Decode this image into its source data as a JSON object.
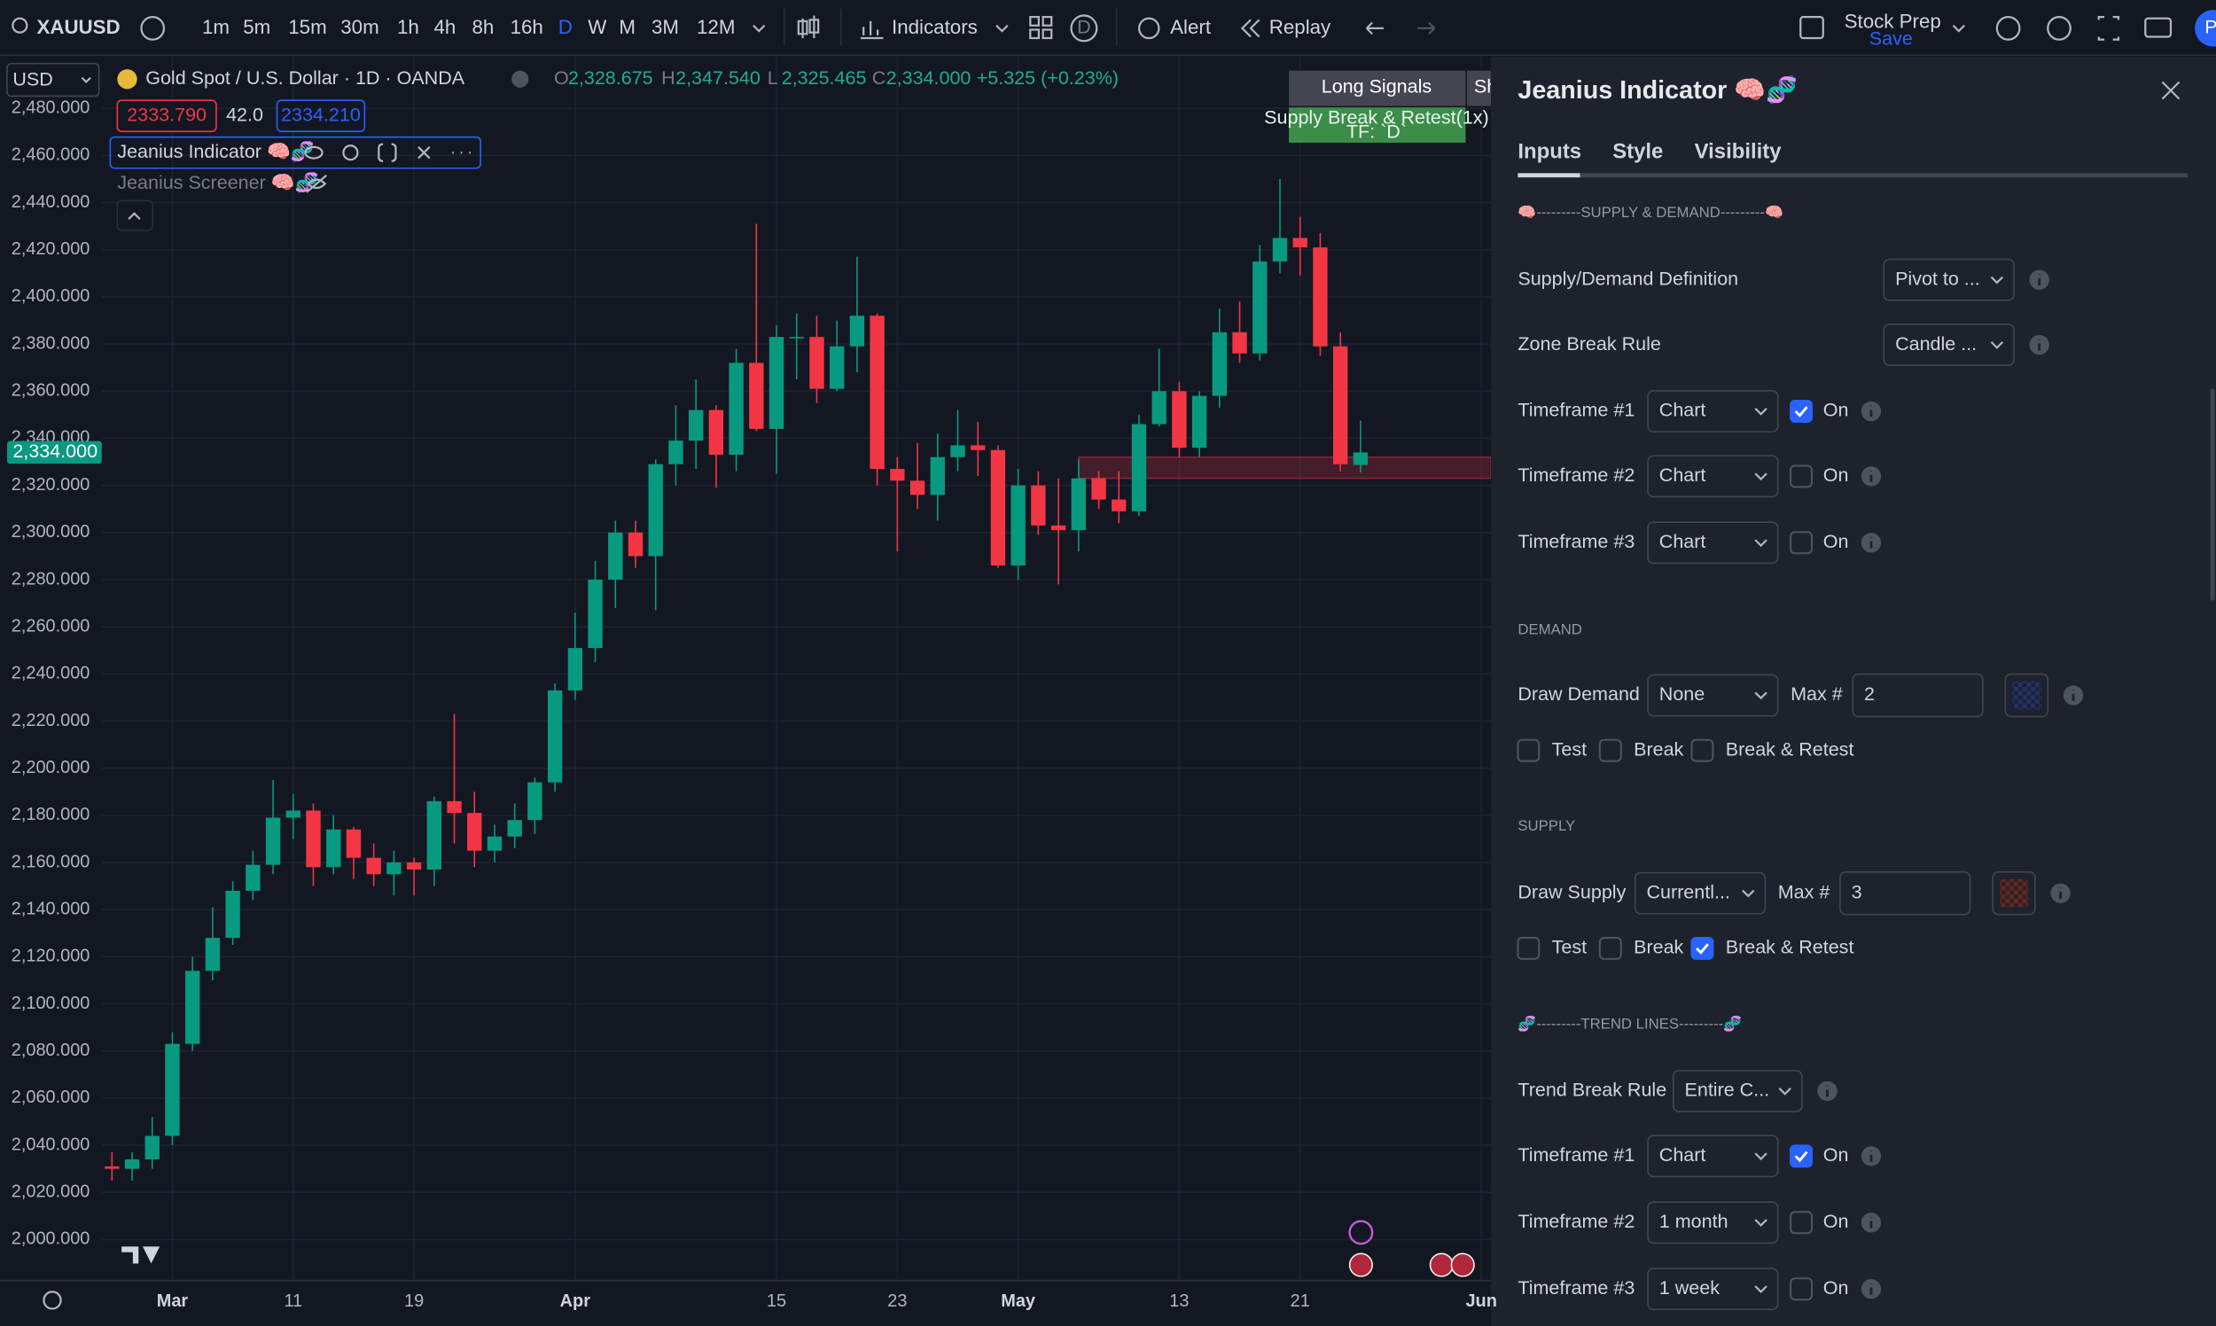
{
  "toolbar": {
    "symbol": "XAUUSD",
    "intervals": [
      "1m",
      "5m",
      "15m",
      "30m",
      "1h",
      "4h",
      "8h",
      "16h",
      "D",
      "W",
      "M",
      "3M",
      "12M"
    ],
    "indicators": "Indicators",
    "layout_badge": "D",
    "alert": "Alert",
    "replay": "Replay",
    "stock_prep": "Stock Prep",
    "save": "Save",
    "profile": "P"
  },
  "legend": {
    "currency": "USD",
    "title": "Gold Spot / U.S. Dollar · 1D · OANDA",
    "open_label": "O",
    "open": "2,328.675",
    "high_label": "H",
    "high": "2,347.540",
    "low_label": "L",
    "low": "2,325.465",
    "close_label": "C",
    "close": "2,334.000",
    "change": "+5.325 (+0.23%)",
    "bid": "2333.790",
    "spread": "42.0",
    "ask": "2334.210",
    "indicator": "Jeanius Indicator 🧠🧬",
    "screener": "Jeanius Screener 🧠🧬"
  },
  "signals": {
    "title": "Long Signals",
    "next_tab": "Sh",
    "message": "Supply Break & Retest(1x)",
    "timeframe": "TF: `D`"
  },
  "chart_data": {
    "type": "candlestick",
    "up_color": "#089981",
    "down_color": "#f23645",
    "open": [
      2031,
      2030,
      2034,
      2044,
      2083,
      2114,
      2128,
      2148,
      2159,
      2179,
      2182,
      2158,
      2174,
      2162,
      2155,
      2160,
      2157,
      2186,
      2181,
      2165,
      2171,
      2178,
      2194,
      2233,
      2251,
      2280,
      2300,
      2290,
      2329,
      2339,
      2352,
      2333,
      2372,
      2344,
      2383,
      2383,
      2361,
      2379,
      2392,
      2327,
      2322,
      2316,
      2332,
      2337,
      2335,
      2286,
      2320,
      2303,
      2301,
      2323,
      2314,
      2309,
      2346,
      2360,
      2336,
      2358,
      2385,
      2376,
      2415,
      2425,
      2421,
      2379,
      2328.675
    ],
    "high": [
      2037,
      2037,
      2052,
      2088,
      2120,
      2141,
      2152,
      2165,
      2195,
      2189,
      2185,
      2180,
      2175,
      2168,
      2165,
      2162,
      2188,
      2223,
      2190,
      2176,
      2185,
      2196,
      2236,
      2266,
      2288,
      2305,
      2305,
      2331,
      2354,
      2365,
      2354,
      2378,
      2431,
      2388,
      2393,
      2392,
      2390,
      2417,
      2393,
      2332,
      2338,
      2342,
      2352,
      2347,
      2337,
      2327,
      2326,
      2323,
      2331,
      2326,
      2326,
      2350,
      2378,
      2364,
      2360,
      2395,
      2398,
      2422,
      2450,
      2434,
      2427,
      2385,
      2347.54
    ],
    "low": [
      2025,
      2025,
      2030,
      2040,
      2080,
      2110,
      2125,
      2144,
      2155,
      2170,
      2150,
      2155,
      2153,
      2150,
      2146,
      2146,
      2150,
      2168,
      2158,
      2160,
      2166,
      2172,
      2190,
      2229,
      2245,
      2268,
      2285,
      2267,
      2320,
      2327,
      2319,
      2326,
      2343,
      2325,
      2365,
      2355,
      2360,
      2368,
      2320,
      2292,
      2310,
      2305,
      2326,
      2324,
      2285,
      2280,
      2299,
      2278,
      2292,
      2310,
      2304,
      2307,
      2345,
      2332,
      2332,
      2353,
      2372,
      2373,
      2410,
      2409,
      2375,
      2326,
      2325.465
    ],
    "close": [
      2030,
      2034,
      2044,
      2083,
      2114,
      2128,
      2148,
      2159,
      2179,
      2182,
      2158,
      2174,
      2162,
      2155,
      2160,
      2157,
      2186,
      2181,
      2165,
      2171,
      2178,
      2194,
      2233,
      2251,
      2280,
      2300,
      2290,
      2329,
      2339,
      2352,
      2333,
      2372,
      2344,
      2383,
      2383,
      2361,
      2379,
      2392,
      2327,
      2322,
      2316,
      2332,
      2337,
      2335,
      2286,
      2320,
      2303,
      2301,
      2323,
      2314,
      2309,
      2346,
      2360,
      2336,
      2358,
      2385,
      2376,
      2415,
      2425,
      2421,
      2379,
      2329,
      2334
    ],
    "xlim": [
      -5.56,
      68.48
    ],
    "xticks": [
      {
        "value": 3,
        "label": "Mar"
      },
      {
        "value": 9,
        "label": "11"
      },
      {
        "value": 15,
        "label": "19"
      },
      {
        "value": 23,
        "label": "Apr"
      },
      {
        "value": 33,
        "label": "15"
      },
      {
        "value": 39,
        "label": "23"
      },
      {
        "value": 45,
        "label": "May"
      },
      {
        "value": 53,
        "label": "13"
      },
      {
        "value": 59,
        "label": "21"
      },
      {
        "value": 68,
        "label": "Jun"
      }
    ],
    "ylim": [
      1983.2,
      2499.6
    ],
    "yticks": [
      {
        "value": 2000,
        "label": "2,000.000"
      },
      {
        "value": 2020,
        "label": "2,020.000"
      },
      {
        "value": 2040,
        "label": "2,040.000"
      },
      {
        "value": 2060,
        "label": "2,060.000"
      },
      {
        "value": 2080,
        "label": "2,080.000"
      },
      {
        "value": 2100,
        "label": "2,100.000"
      },
      {
        "value": 2120,
        "label": "2,120.000"
      },
      {
        "value": 2140,
        "label": "2,140.000"
      },
      {
        "value": 2160,
        "label": "2,160.000"
      },
      {
        "value": 2180,
        "label": "2,180.000"
      },
      {
        "value": 2200,
        "label": "2,200.000"
      },
      {
        "value": 2220,
        "label": "2,220.000"
      },
      {
        "value": 2240,
        "label": "2,240.000"
      },
      {
        "value": 2260,
        "label": "2,260.000"
      },
      {
        "value": 2280,
        "label": "2,280.000"
      },
      {
        "value": 2300,
        "label": "2,300.000"
      },
      {
        "value": 2320,
        "label": "2,320.000"
      },
      {
        "value": 2340,
        "label": "2,340.000"
      },
      {
        "value": 2360,
        "label": "2,360.000"
      },
      {
        "value": 2380,
        "label": "2,380.000"
      },
      {
        "value": 2400,
        "label": "2,400.000"
      },
      {
        "value": 2420,
        "label": "2,420.000"
      },
      {
        "value": 2440,
        "label": "2,440.000"
      },
      {
        "value": 2460,
        "label": "2,460.000"
      },
      {
        "value": 2480,
        "label": "2,480.000"
      }
    ],
    "grid": true,
    "zone": {
      "start": 48,
      "top": 2332,
      "bottom": 2323,
      "color": "#f23645"
    },
    "last_price_label": "2,334.000"
  },
  "panel": {
    "title": "Jeanius Indicator 🧠🧬",
    "tabs": [
      "Inputs",
      "Style",
      "Visibility"
    ],
    "supply_demand": {
      "header": "🧠---------SUPPLY & DEMAND---------🧠",
      "definition": {
        "label": "Supply/Demand Definition",
        "value": "Pivot to ..."
      },
      "break_rule": {
        "label": "Zone Break Rule",
        "value": "Candle ..."
      },
      "timeframes": [
        {
          "label": "Timeframe #1",
          "value": "Chart",
          "toggle": "On",
          "checked": true
        },
        {
          "label": "Timeframe #2",
          "value": "Chart",
          "toggle": "On",
          "checked": false
        },
        {
          "label": "Timeframe #3",
          "value": "Chart",
          "toggle": "On",
          "checked": false
        }
      ]
    },
    "demand": {
      "header": "DEMAND",
      "label": "Draw Demand",
      "value": "None",
      "max_label": "Max #",
      "max": 2,
      "color": "#26325e",
      "options": [
        {
          "label": "Test",
          "checked": false
        },
        {
          "label": "Break",
          "checked": false
        },
        {
          "label": "Break & Retest",
          "checked": false
        }
      ]
    },
    "supply": {
      "header": "SUPPLY",
      "label": "Draw Supply",
      "value": "Currentl...",
      "max_label": "Max #",
      "max": 3,
      "color": "#5a2b2b",
      "options": [
        {
          "label": "Test",
          "checked": false
        },
        {
          "label": "Break",
          "checked": false
        },
        {
          "label": "Break & Retest",
          "checked": true
        }
      ]
    },
    "trend_lines": {
      "header": "🧬---------TREND LINES---------🧬",
      "break_rule": {
        "label": "Trend Break Rule",
        "value": "Entire C..."
      },
      "timeframes": [
        {
          "label": "Timeframe #1",
          "value": "Chart",
          "toggle": "On",
          "checked": true
        },
        {
          "label": "Timeframe #2",
          "value": "1 month",
          "toggle": "On",
          "checked": false
        },
        {
          "label": "Timeframe #3",
          "value": "1 week",
          "toggle": "On",
          "checked": false
        }
      ]
    }
  }
}
